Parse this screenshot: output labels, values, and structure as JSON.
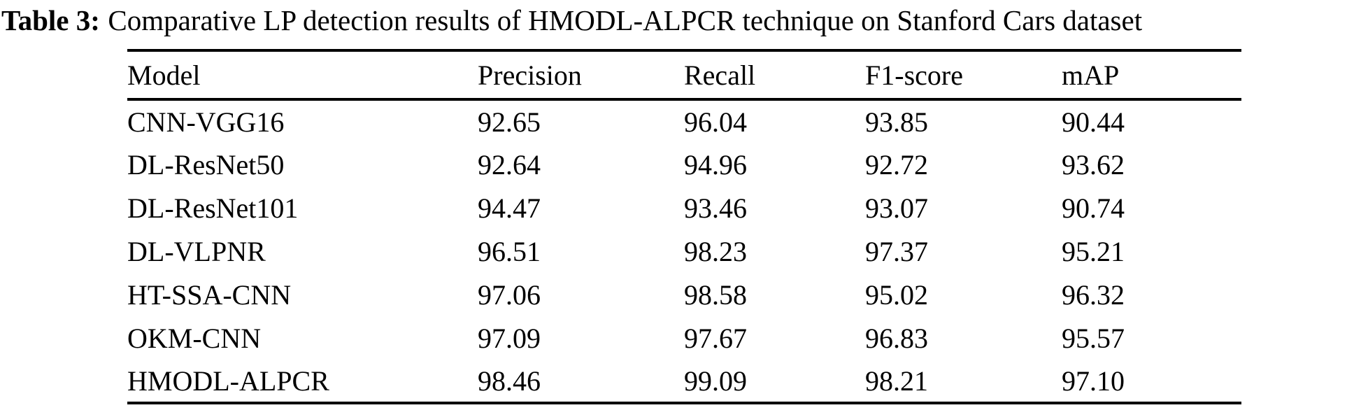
{
  "caption": {
    "label": "Table 3:",
    "text": "Comparative LP detection results of HMODL-ALPCR technique on Stanford Cars dataset"
  },
  "table": {
    "columns": [
      "Model",
      "Precision",
      "Recall",
      "F1-score",
      "mAP"
    ],
    "rows": [
      [
        "CNN-VGG16",
        "92.65",
        "96.04",
        "93.85",
        "90.44"
      ],
      [
        "DL-ResNet50",
        "92.64",
        "94.96",
        "92.72",
        "93.62"
      ],
      [
        "DL-ResNet101",
        "94.47",
        "93.46",
        "93.07",
        "90.74"
      ],
      [
        "DL-VLPNR",
        "96.51",
        "98.23",
        "97.37",
        "95.21"
      ],
      [
        "HT-SSA-CNN",
        "97.06",
        "98.58",
        "95.02",
        "96.32"
      ],
      [
        "OKM-CNN",
        "97.09",
        "97.67",
        "96.83",
        "95.57"
      ],
      [
        "HMODL-ALPCR",
        "98.46",
        "99.09",
        "98.21",
        "97.10"
      ]
    ]
  },
  "chart_data": {
    "type": "table",
    "title": "Table 3: Comparative LP detection results of HMODL-ALPCR technique on Stanford Cars dataset",
    "columns": [
      "Model",
      "Precision",
      "Recall",
      "F1-score",
      "mAP"
    ],
    "rows": [
      {
        "Model": "CNN-VGG16",
        "Precision": 92.65,
        "Recall": 96.04,
        "F1-score": 93.85,
        "mAP": 90.44
      },
      {
        "Model": "DL-ResNet50",
        "Precision": 92.64,
        "Recall": 94.96,
        "F1-score": 92.72,
        "mAP": 93.62
      },
      {
        "Model": "DL-ResNet101",
        "Precision": 94.47,
        "Recall": 93.46,
        "F1-score": 93.07,
        "mAP": 90.74
      },
      {
        "Model": "DL-VLPNR",
        "Precision": 96.51,
        "Recall": 98.23,
        "F1-score": 97.37,
        "mAP": 95.21
      },
      {
        "Model": "HT-SSA-CNN",
        "Precision": 97.06,
        "Recall": 98.58,
        "F1-score": 95.02,
        "mAP": 96.32
      },
      {
        "Model": "OKM-CNN",
        "Precision": 97.09,
        "Recall": 97.67,
        "F1-score": 96.83,
        "mAP": 95.57
      },
      {
        "Model": "HMODL-ALPCR",
        "Precision": 98.46,
        "Recall": 99.09,
        "F1-score": 98.21,
        "mAP": 97.1
      }
    ]
  },
  "colors": {
    "text": "#000000",
    "background": "#ffffff",
    "rule": "#000000"
  }
}
